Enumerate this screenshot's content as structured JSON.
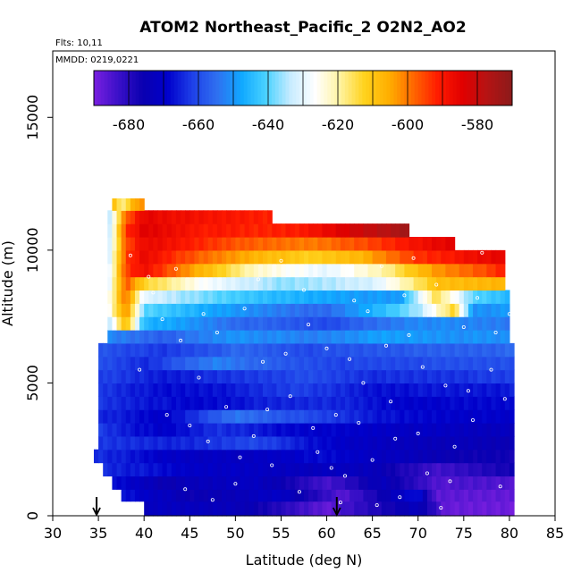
{
  "chart_data": {
    "type": "heatmap",
    "title": "ATOM2 Northeast_Pacific_2 O2N2_AO2",
    "flights_note": "Flts: 10,11",
    "date_note": "MMDD: 0219,0221",
    "xlabel": "Latitude (deg N)",
    "ylabel": "Altitude (m)",
    "xlim": [
      30,
      85
    ],
    "ylim": [
      0,
      17500
    ],
    "x_ticks": [
      30,
      35,
      40,
      45,
      50,
      55,
      60,
      65,
      70,
      75,
      80,
      85
    ],
    "y_ticks": [
      0,
      5000,
      10000,
      15000
    ],
    "colorbar": {
      "range": [
        -690,
        -570
      ],
      "tick_values": [
        -680,
        -660,
        -640,
        -620,
        -600,
        -580
      ],
      "tick_labels": [
        "-680",
        "-660",
        "-640",
        "-620",
        "-600",
        "-580"
      ],
      "colors": [
        "#7a1fe0",
        "#3a10c8",
        "#0a00b0",
        "#0000cc",
        "#1e40e8",
        "#2f6ff0",
        "#10a8ff",
        "#4ad2ff",
        "#c8ecff",
        "#ffffff",
        "#fff3a0",
        "#ffd21c",
        "#ffae00",
        "#ff6600",
        "#ff1a00",
        "#e00000",
        "#b41414",
        "#8b1a1a"
      ]
    },
    "arrows_lat": [
      34.8,
      61.1
    ],
    "layers": [
      {
        "bottom": 0,
        "top": 550,
        "lat_start": 40,
        "lat_end": 80.5,
        "segments": [
          [
            40,
            -672
          ],
          [
            50,
            -673
          ],
          [
            60,
            -687
          ],
          [
            70,
            -672
          ],
          [
            73,
            -688
          ],
          [
            80.5,
            -688
          ]
        ]
      },
      {
        "bottom": 550,
        "top": 1000,
        "lat_start": 37.5,
        "lat_end": 80.5,
        "segments": [
          [
            37.5,
            -666
          ],
          [
            45,
            -676
          ],
          [
            55,
            -671
          ],
          [
            62,
            -686
          ],
          [
            70,
            -666
          ],
          [
            72,
            -687
          ],
          [
            80.5,
            -687
          ]
        ]
      },
      {
        "bottom": 1000,
        "top": 1500,
        "lat_start": 36.5,
        "lat_end": 80.5,
        "segments": [
          [
            36.5,
            -667
          ],
          [
            42,
            -675
          ],
          [
            52,
            -671
          ],
          [
            60,
            -684
          ],
          [
            66,
            -673
          ],
          [
            72,
            -685
          ],
          [
            80.5,
            -685
          ]
        ]
      },
      {
        "bottom": 1500,
        "top": 2000,
        "lat_start": 35.5,
        "lat_end": 80.5,
        "segments": [
          [
            35.5,
            -664
          ],
          [
            45,
            -670
          ],
          [
            55,
            -672
          ],
          [
            65,
            -673
          ],
          [
            72,
            -684
          ],
          [
            80.5,
            -676
          ]
        ]
      },
      {
        "bottom": 2000,
        "top": 2500,
        "lat_start": 34.5,
        "lat_end": 80.5,
        "segments": [
          [
            34.5,
            -663
          ],
          [
            42,
            -670
          ],
          [
            50,
            -672
          ],
          [
            60,
            -668
          ],
          [
            70,
            -674
          ],
          [
            80.5,
            -677
          ]
        ]
      },
      {
        "bottom": 2500,
        "top": 3000,
        "lat_start": 35,
        "lat_end": 80.5,
        "segments": [
          [
            35,
            -663
          ],
          [
            45,
            -665
          ],
          [
            52,
            -660
          ],
          [
            58,
            -667
          ],
          [
            65,
            -672
          ],
          [
            80.5,
            -675
          ]
        ]
      },
      {
        "bottom": 3000,
        "top": 3500,
        "lat_start": 35,
        "lat_end": 80.5,
        "segments": [
          [
            35,
            -662
          ],
          [
            42,
            -670
          ],
          [
            48,
            -663
          ],
          [
            55,
            -668
          ],
          [
            65,
            -670
          ],
          [
            80.5,
            -673
          ]
        ]
      },
      {
        "bottom": 3500,
        "top": 4000,
        "lat_start": 35,
        "lat_end": 80.5,
        "segments": [
          [
            35,
            -664
          ],
          [
            42,
            -670
          ],
          [
            50,
            -654
          ],
          [
            60,
            -662
          ],
          [
            68,
            -668
          ],
          [
            80.5,
            -670
          ]
        ]
      },
      {
        "bottom": 4000,
        "top": 4500,
        "lat_start": 35,
        "lat_end": 80.5,
        "segments": [
          [
            35,
            -663
          ],
          [
            45,
            -669
          ],
          [
            52,
            -666
          ],
          [
            60,
            -664
          ],
          [
            68,
            -669
          ],
          [
            80.5,
            -668
          ]
        ]
      },
      {
        "bottom": 4500,
        "top": 5000,
        "lat_start": 35,
        "lat_end": 80.5,
        "segments": [
          [
            35,
            -662
          ],
          [
            42,
            -668
          ],
          [
            50,
            -666
          ],
          [
            57,
            -661
          ],
          [
            65,
            -667
          ],
          [
            80.5,
            -666
          ]
        ]
      },
      {
        "bottom": 5000,
        "top": 5500,
        "lat_start": 35,
        "lat_end": 80.5,
        "segments": [
          [
            35,
            -661
          ],
          [
            42,
            -666
          ],
          [
            50,
            -663
          ],
          [
            58,
            -660
          ],
          [
            66,
            -664
          ],
          [
            80.5,
            -662
          ]
        ]
      },
      {
        "bottom": 5500,
        "top": 6000,
        "lat_start": 35,
        "lat_end": 80.5,
        "segments": [
          [
            35,
            -659
          ],
          [
            40,
            -664
          ],
          [
            48,
            -652
          ],
          [
            55,
            -658
          ],
          [
            62,
            -661
          ],
          [
            80.5,
            -659
          ]
        ]
      },
      {
        "bottom": 6000,
        "top": 6500,
        "lat_start": 35,
        "lat_end": 80.5,
        "segments": [
          [
            35,
            -658
          ],
          [
            42,
            -663
          ],
          [
            50,
            -656
          ],
          [
            58,
            -660
          ],
          [
            66,
            -658
          ],
          [
            80.5,
            -656
          ]
        ]
      },
      {
        "bottom": 6500,
        "top": 7000,
        "lat_start": 36,
        "lat_end": 80,
        "segments": [
          [
            36,
            -652
          ],
          [
            42,
            -657
          ],
          [
            50,
            -650
          ],
          [
            58,
            -653
          ],
          [
            66,
            -649
          ],
          [
            80,
            -651
          ]
        ]
      },
      {
        "bottom": 7000,
        "top": 7500,
        "lat_start": 36,
        "lat_end": 80,
        "segments": [
          [
            36,
            -637
          ],
          [
            38,
            -606
          ],
          [
            40,
            -645
          ],
          [
            50,
            -655
          ],
          [
            60,
            -660
          ],
          [
            70,
            -651
          ],
          [
            80,
            -653
          ]
        ]
      },
      {
        "bottom": 7500,
        "top": 8000,
        "lat_start": 36,
        "lat_end": 80,
        "segments": [
          [
            36,
            -628
          ],
          [
            38,
            -600
          ],
          [
            40,
            -640
          ],
          [
            50,
            -650
          ],
          [
            60,
            -656
          ],
          [
            70,
            -636
          ],
          [
            74,
            -612
          ],
          [
            76,
            -650
          ],
          [
            80,
            -650
          ]
        ]
      },
      {
        "bottom": 8000,
        "top": 8500,
        "lat_start": 36,
        "lat_end": 80,
        "segments": [
          [
            36,
            -628
          ],
          [
            38,
            -598
          ],
          [
            40,
            -630
          ],
          [
            48,
            -640
          ],
          [
            58,
            -647
          ],
          [
            68,
            -650
          ],
          [
            72,
            -614
          ],
          [
            76,
            -640
          ],
          [
            80,
            -645
          ]
        ]
      },
      {
        "bottom": 8500,
        "top": 9000,
        "lat_start": 36,
        "lat_end": 79.5,
        "segments": [
          [
            36,
            -632
          ],
          [
            38,
            -596
          ],
          [
            40,
            -612
          ],
          [
            46,
            -626
          ],
          [
            55,
            -637
          ],
          [
            65,
            -632
          ],
          [
            72,
            -609
          ],
          [
            79.5,
            -606
          ]
        ]
      },
      {
        "bottom": 9000,
        "top": 9500,
        "lat_start": 36,
        "lat_end": 79.5,
        "segments": [
          [
            36,
            -633
          ],
          [
            38,
            -595
          ],
          [
            40,
            -588
          ],
          [
            46,
            -606
          ],
          [
            52,
            -622
          ],
          [
            60,
            -630
          ],
          [
            66,
            -620
          ],
          [
            72,
            -603
          ],
          [
            79.5,
            -592
          ]
        ]
      },
      {
        "bottom": 9500,
        "top": 10000,
        "lat_start": 36,
        "lat_end": 79.5,
        "segments": [
          [
            36,
            -635
          ],
          [
            38,
            -595
          ],
          [
            40,
            -586
          ],
          [
            46,
            -598
          ],
          [
            52,
            -606
          ],
          [
            58,
            -612
          ],
          [
            64,
            -606
          ],
          [
            70,
            -593
          ],
          [
            79.5,
            -585
          ]
        ]
      },
      {
        "bottom": 10000,
        "top": 10500,
        "lat_start": 36,
        "lat_end": 74,
        "segments": [
          [
            36,
            -637
          ],
          [
            38,
            -596
          ],
          [
            40,
            -586
          ],
          [
            46,
            -592
          ],
          [
            52,
            -598
          ],
          [
            58,
            -600
          ],
          [
            64,
            -596
          ],
          [
            70,
            -588
          ],
          [
            74,
            -585
          ]
        ]
      },
      {
        "bottom": 10500,
        "top": 11000,
        "lat_start": 36,
        "lat_end": 69,
        "segments": [
          [
            36,
            -637
          ],
          [
            38,
            -594
          ],
          [
            40,
            -584
          ],
          [
            46,
            -590
          ],
          [
            52,
            -592
          ],
          [
            58,
            -590
          ],
          [
            64,
            -580
          ],
          [
            69,
            -574
          ]
        ]
      },
      {
        "bottom": 11000,
        "top": 11500,
        "lat_start": 36,
        "lat_end": 54,
        "segments": [
          [
            36,
            -640
          ],
          [
            38,
            -598
          ],
          [
            40,
            -585
          ],
          [
            46,
            -589
          ],
          [
            54,
            -591
          ]
        ]
      },
      {
        "bottom": 11500,
        "top": 11950,
        "lat_start": 36.5,
        "lat_end": 40,
        "segments": [
          [
            36.5,
            -604
          ],
          [
            37.5,
            -620
          ],
          [
            39,
            -604
          ],
          [
            40,
            -604
          ]
        ]
      }
    ],
    "points": [
      [
        40.5,
        9000
      ],
      [
        41,
        8400
      ],
      [
        42,
        7400
      ],
      [
        44,
        6600
      ],
      [
        45,
        3400
      ],
      [
        46,
        5200
      ],
      [
        47,
        2800
      ],
      [
        48,
        6900
      ],
      [
        49,
        4100
      ],
      [
        50,
        1200
      ],
      [
        51,
        7800
      ],
      [
        52,
        3000
      ],
      [
        53,
        5800
      ],
      [
        54,
        1900
      ],
      [
        55,
        9600
      ],
      [
        56,
        4500
      ],
      [
        57,
        900
      ],
      [
        58,
        7200
      ],
      [
        59,
        2400
      ],
      [
        60,
        6300
      ],
      [
        61,
        3800
      ],
      [
        62,
        1500
      ],
      [
        63,
        8100
      ],
      [
        64,
        5000
      ],
      [
        65,
        2100
      ],
      [
        66,
        9400
      ],
      [
        67,
        4300
      ],
      [
        68,
        700
      ],
      [
        69,
        6800
      ],
      [
        70,
        3100
      ],
      [
        71,
        1600
      ],
      [
        72,
        8700
      ],
      [
        73,
        4900
      ],
      [
        74,
        2600
      ],
      [
        75,
        7100
      ],
      [
        76,
        3600
      ],
      [
        77,
        9900
      ],
      [
        78,
        5500
      ],
      [
        79,
        1100
      ],
      [
        80,
        7600
      ],
      [
        42.5,
        3800
      ],
      [
        44.5,
        1000
      ],
      [
        46.5,
        7600
      ],
      [
        50.5,
        2200
      ],
      [
        52.5,
        8900
      ],
      [
        55.5,
        6100
      ],
      [
        58.5,
        3300
      ],
      [
        61.5,
        500
      ],
      [
        64.5,
        7700
      ],
      [
        67.5,
        2900
      ],
      [
        70.5,
        5600
      ],
      [
        73.5,
        1300
      ],
      [
        76.5,
        8200
      ],
      [
        79.5,
        4400
      ],
      [
        38.5,
        9800
      ],
      [
        39.5,
        5500
      ],
      [
        43.5,
        9300
      ],
      [
        47.5,
        600
      ],
      [
        53.5,
        4000
      ],
      [
        57.5,
        8500
      ],
      [
        60.5,
        1800
      ],
      [
        63.5,
        3500
      ],
      [
        66.5,
        6400
      ],
      [
        69.5,
        9700
      ],
      [
        72.5,
        300
      ],
      [
        75.5,
        4700
      ],
      [
        78.5,
        6900
      ],
      [
        62.5,
        5900
      ],
      [
        65.5,
        400
      ],
      [
        68.5,
        8300
      ]
    ]
  }
}
